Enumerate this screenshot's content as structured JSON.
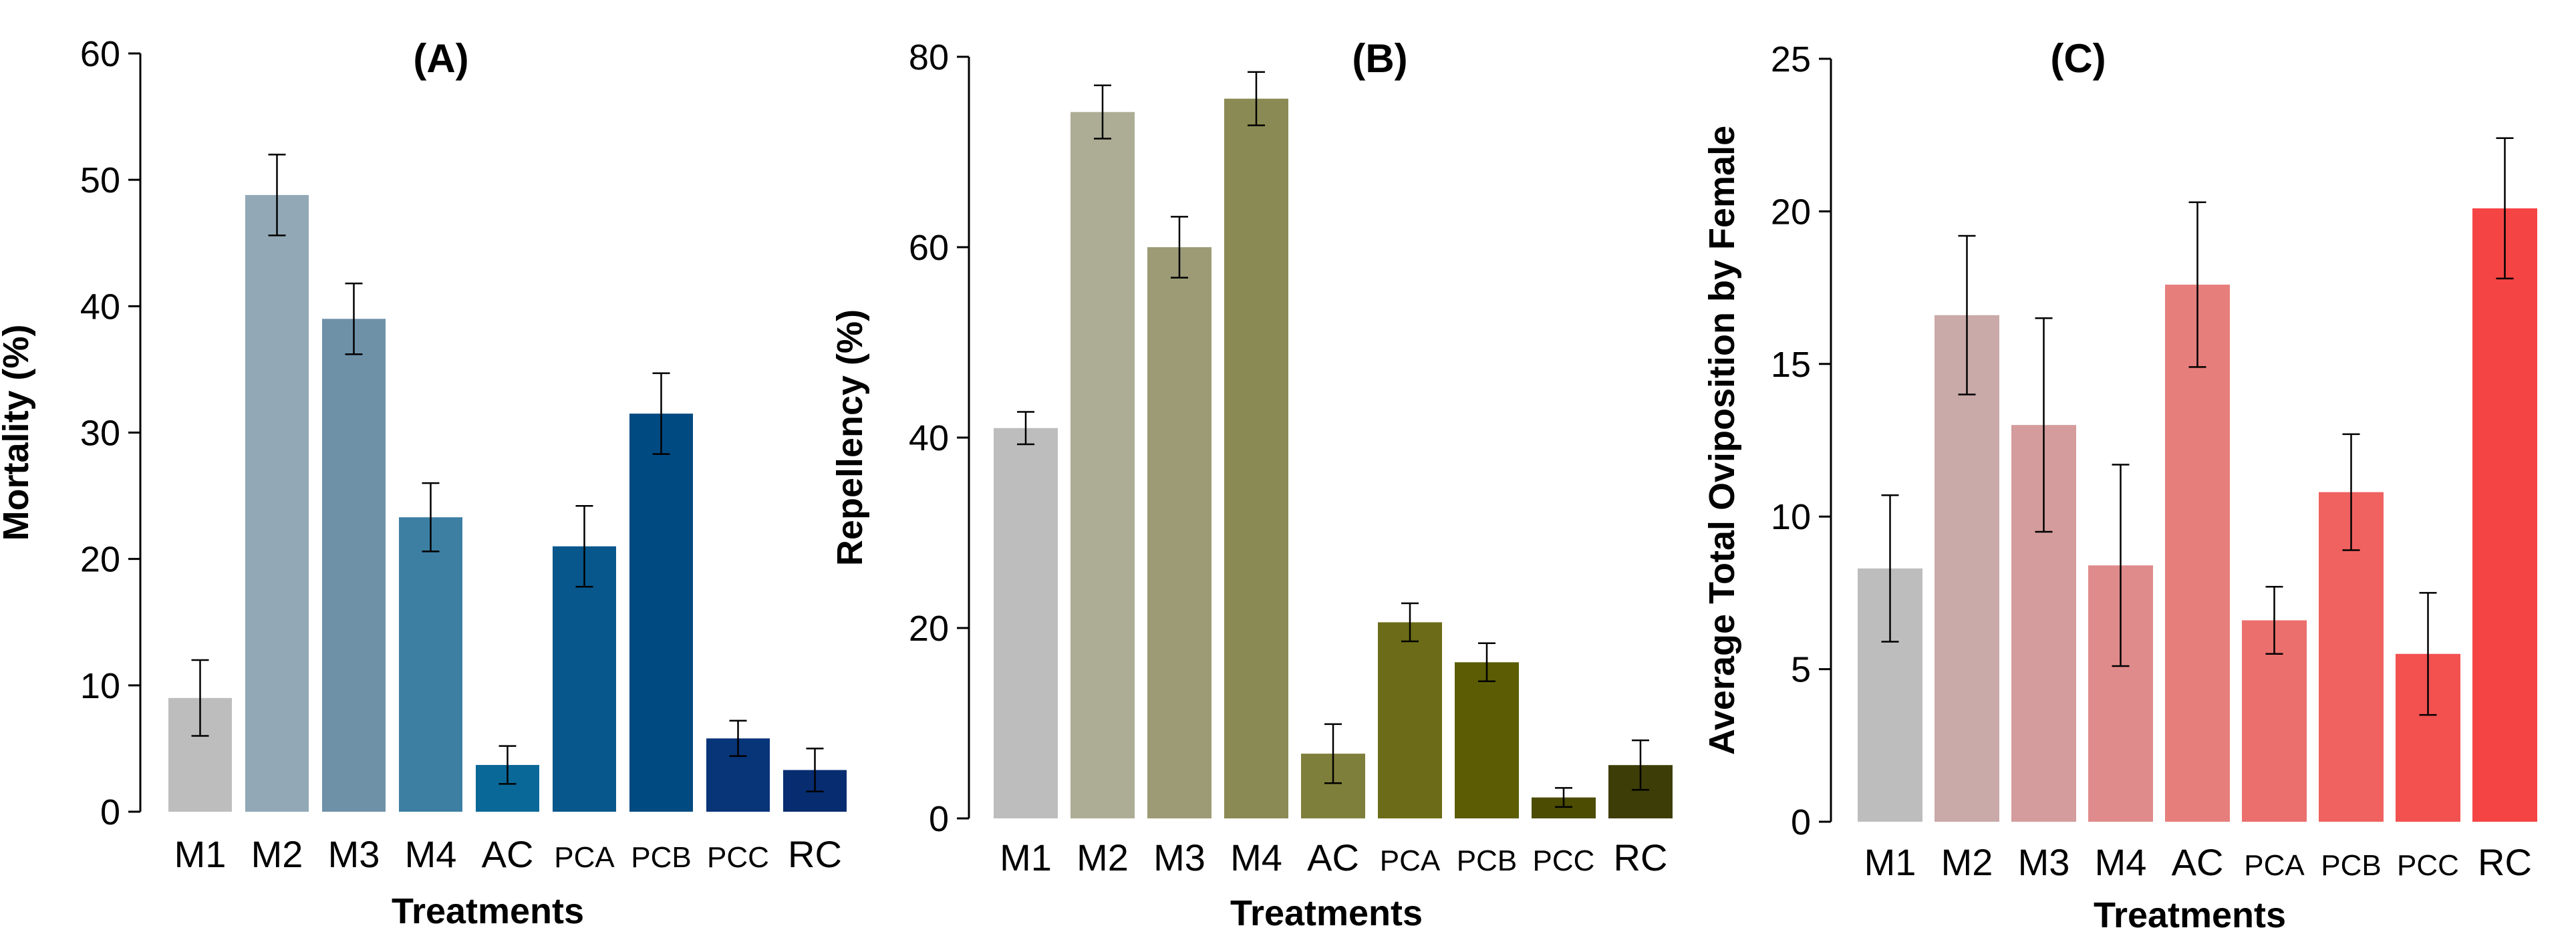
{
  "chart_data": [
    {
      "type": "bar",
      "title": "(A)",
      "xlabel": "Treatments",
      "ylabel": "Mortality (%)",
      "ylim": [
        0,
        60
      ],
      "yticks": [
        "0",
        "10",
        "20",
        "30",
        "40",
        "50",
        "60"
      ],
      "categories": [
        "M1",
        "M2",
        "M3",
        "M4",
        "AC",
        "PCA",
        "PCB",
        "PCC",
        "RC"
      ],
      "values": [
        9.0,
        48.8,
        39.0,
        23.3,
        3.7,
        21.0,
        31.5,
        5.8,
        3.3
      ],
      "errors": [
        3.0,
        3.2,
        2.8,
        2.7,
        1.5,
        3.2,
        3.2,
        1.4,
        1.7
      ],
      "colors": [
        "#bdbdbd",
        "#92a8b6",
        "#6e91a8",
        "#3d7fa3",
        "#0a6898",
        "#07578c",
        "#004a82",
        "#083478",
        "#072d70"
      ]
    },
    {
      "type": "bar",
      "title": "(B)",
      "xlabel": "Treatments",
      "ylabel": "Repellency (%)",
      "ylim": [
        0,
        80
      ],
      "yticks": [
        "0",
        "20",
        "40",
        "60",
        "80"
      ],
      "categories": [
        "M1",
        "M2",
        "M3",
        "M4",
        "AC",
        "PCA",
        "PCB",
        "PCC",
        "RC"
      ],
      "values": [
        41.0,
        74.2,
        60.0,
        75.6,
        6.8,
        20.6,
        16.4,
        2.2,
        5.6
      ],
      "errors": [
        1.7,
        2.8,
        3.2,
        2.8,
        3.1,
        2.0,
        2.0,
        1.0,
        2.6
      ],
      "colors": [
        "#bdbdbd",
        "#adad96",
        "#9c9b76",
        "#8a8a54",
        "#7f7f3c",
        "#6c6c18",
        "#5c5c05",
        "#4c4c02",
        "#3d3d08"
      ]
    },
    {
      "type": "bar",
      "title": "(C)",
      "xlabel": "Treatments",
      "ylabel": "Average Total Oviposition by Female",
      "ylim": [
        0,
        25
      ],
      "yticks": [
        "0",
        "5",
        "10",
        "15",
        "20",
        "25"
      ],
      "categories": [
        "M1",
        "M2",
        "M3",
        "M4",
        "AC",
        "PCA",
        "PCB",
        "PCC",
        "RC"
      ],
      "values": [
        8.3,
        16.6,
        13.0,
        8.4,
        17.6,
        6.6,
        10.8,
        5.5,
        20.1
      ],
      "errors": [
        2.4,
        2.6,
        3.5,
        3.3,
        2.7,
        1.1,
        1.9,
        2.0,
        2.3
      ],
      "colors": [
        "#bdbdbd",
        "#caa9a9",
        "#d49c9c",
        "#e08b8b",
        "#e67f7c",
        "#eb6f6d",
        "#ef6260",
        "#f25150",
        "#f54444"
      ]
    }
  ]
}
